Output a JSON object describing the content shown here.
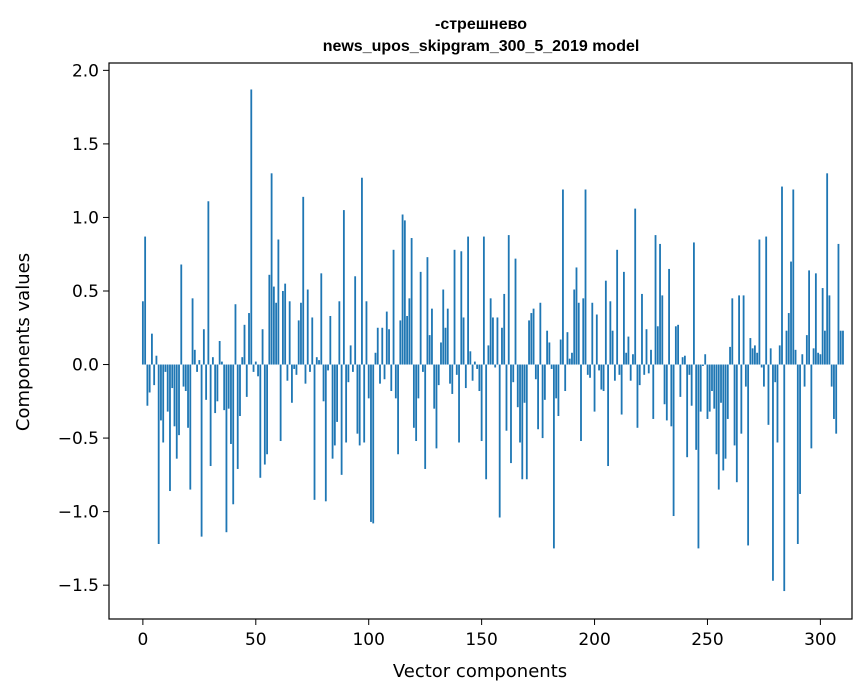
{
  "chart_data": {
    "type": "bar",
    "title": "-стрешнево",
    "subtitle": "news_upos_skipgram_300_5_2019 model",
    "xlabel": "Vector components",
    "ylabel": "Components values",
    "xlim": [
      -15,
      314
    ],
    "ylim": [
      -1.73,
      2.05
    ],
    "xticks": [
      0,
      50,
      100,
      150,
      200,
      250,
      300
    ],
    "xtick_labels": [
      "0",
      "50",
      "100",
      "150",
      "200",
      "250",
      "300"
    ],
    "yticks": [
      2.0,
      1.5,
      1.0,
      0.5,
      0.0,
      -0.5,
      -1.0,
      -1.5
    ],
    "ytick_labels": [
      "2.0",
      "1.5",
      "1.0",
      "0.5",
      "0.0",
      "−0.5",
      "−1.0",
      "−1.5"
    ],
    "grid": false,
    "bar_color": "#1f77b4",
    "values": [
      0.43,
      0.87,
      -0.28,
      -0.19,
      0.21,
      -0.14,
      0.06,
      -1.22,
      -0.38,
      -0.53,
      -0.05,
      -0.32,
      -0.86,
      -0.16,
      -0.42,
      -0.64,
      -0.48,
      0.68,
      -0.15,
      -0.18,
      -0.43,
      -0.85,
      0.45,
      0.1,
      -0.05,
      0.03,
      -1.17,
      0.24,
      -0.24,
      1.11,
      -0.69,
      0.05,
      -0.33,
      -0.25,
      0.16,
      0.02,
      -0.31,
      -1.14,
      -0.3,
      -0.54,
      -0.95,
      0.41,
      -0.71,
      -0.35,
      0.05,
      0.27,
      -0.22,
      0.35,
      1.87,
      -0.05,
      0.02,
      -0.08,
      -0.77,
      0.24,
      -0.68,
      -0.61,
      0.61,
      1.3,
      0.53,
      0.42,
      0.85,
      -0.52,
      0.5,
      0.55,
      -0.11,
      0.43,
      -0.26,
      -0.03,
      -0.07,
      0.3,
      0.42,
      1.14,
      -0.13,
      0.51,
      -0.05,
      0.32,
      -0.92,
      0.05,
      0.03,
      0.62,
      -0.25,
      -0.93,
      -0.04,
      0.33,
      -0.64,
      -0.55,
      -0.39,
      0.43,
      -0.75,
      1.05,
      -0.53,
      -0.12,
      0.13,
      -0.05,
      0.6,
      -0.47,
      -0.55,
      1.27,
      -0.53,
      0.43,
      -0.23,
      -1.07,
      -1.08,
      0.08,
      0.25,
      -0.13,
      0.25,
      -0.1,
      0.36,
      0.24,
      -0.18,
      0.78,
      -0.23,
      -0.61,
      0.3,
      1.02,
      0.98,
      0.33,
      0.45,
      0.86,
      -0.43,
      -0.52,
      -0.23,
      0.63,
      -0.05,
      -0.71,
      0.73,
      0.2,
      0.38,
      -0.3,
      -0.57,
      -0.14,
      0.15,
      0.51,
      0.25,
      0.38,
      -0.13,
      -0.2,
      0.78,
      -0.07,
      -0.53,
      0.77,
      0.32,
      -0.16,
      0.87,
      0.09,
      -0.11,
      0.02,
      -0.03,
      -0.18,
      -0.52,
      0.87,
      -0.78,
      0.13,
      0.45,
      0.32,
      -0.02,
      0.32,
      -1.04,
      0.25,
      0.48,
      -0.45,
      0.88,
      -0.67,
      -0.12,
      0.72,
      -0.29,
      -0.53,
      -0.78,
      -0.26,
      -0.78,
      0.3,
      0.35,
      0.38,
      -0.1,
      -0.44,
      0.42,
      -0.5,
      -0.24,
      0.23,
      0.15,
      -0.03,
      -1.25,
      -0.23,
      -0.35,
      0.17,
      1.19,
      -0.18,
      0.22,
      0.04,
      0.08,
      0.51,
      0.66,
      0.42,
      -0.52,
      0.45,
      1.19,
      -0.07,
      -0.09,
      0.42,
      -0.32,
      0.34,
      -0.04,
      -0.17,
      -0.18,
      0.57,
      -0.69,
      0.43,
      0.23,
      -0.11,
      0.78,
      -0.07,
      -0.34,
      0.63,
      0.08,
      0.19,
      -0.11,
      0.07,
      1.06,
      -0.43,
      -0.14,
      0.48,
      -0.07,
      0.24,
      -0.06,
      0.1,
      -0.37,
      0.88,
      0.26,
      0.82,
      0.47,
      -0.27,
      -0.38,
      0.65,
      -0.42,
      -1.03,
      0.26,
      0.27,
      -0.22,
      0.05,
      0.06,
      -0.63,
      -0.07,
      -0.28,
      0.83,
      -0.58,
      -1.25,
      -0.32,
      -0.01,
      0.07,
      -0.37,
      -0.32,
      -0.18,
      -0.3,
      -0.61,
      -0.85,
      -0.26,
      -0.72,
      -0.64,
      -0.37,
      0.12,
      0.45,
      -0.55,
      -0.8,
      0.47,
      -0.47,
      0.47,
      -0.15,
      -1.23,
      0.18,
      0.11,
      0.13,
      0.08,
      0.85,
      -0.02,
      -0.15,
      0.87,
      -0.41,
      0.11,
      -1.47,
      -0.12,
      -0.53,
      0.13,
      1.21,
      -1.54,
      0.23,
      0.35,
      0.7,
      1.19,
      0.1,
      -1.22,
      -0.88,
      0.07,
      -0.15,
      0.2,
      0.64,
      -0.57,
      0.11,
      0.62,
      0.08,
      0.07,
      0.52,
      0.23,
      1.3,
      0.47,
      -0.15,
      -0.37,
      -0.47,
      0.82,
      0.23,
      0.23
    ]
  }
}
